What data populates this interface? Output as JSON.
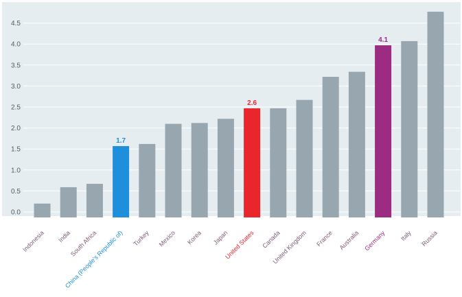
{
  "chart_data": {
    "type": "bar",
    "title": "",
    "xlabel": "",
    "ylabel": "",
    "ylim": [
      0,
      4.9
    ],
    "yticks": [
      "0.0",
      "0.5",
      "1.0",
      "1.5",
      "2.0",
      "2.5",
      "3.0",
      "3.5",
      "4.0",
      "4.5"
    ],
    "grid": true,
    "legend": "none",
    "categories": [
      "Indonesia",
      "India",
      "South Africa",
      "China (People's Republic of)",
      "Turkey",
      "Mexico",
      "Korea",
      "Japan",
      "United States",
      "Canada",
      "United Kingdom",
      "France",
      "Australia",
      "Germany",
      "Italy",
      "Russia"
    ],
    "values": [
      0.33,
      0.72,
      0.8,
      1.7,
      1.75,
      2.23,
      2.25,
      2.35,
      2.6,
      2.6,
      2.8,
      3.35,
      3.47,
      4.1,
      4.2,
      4.9
    ],
    "data_labels": [
      {
        "category": "China (People's Republic of)",
        "text": "1.7"
      },
      {
        "category": "United States",
        "text": "2.6"
      },
      {
        "category": "Germany",
        "text": "4.1"
      }
    ],
    "colors": {
      "default_bar": "#98a6b0",
      "China (People's Republic of)": "#1f8fdc",
      "United States": "#e8262b",
      "Germany": "#9b2c82",
      "background_panel": "#e6edf1",
      "gridline": "#ffffff"
    }
  }
}
